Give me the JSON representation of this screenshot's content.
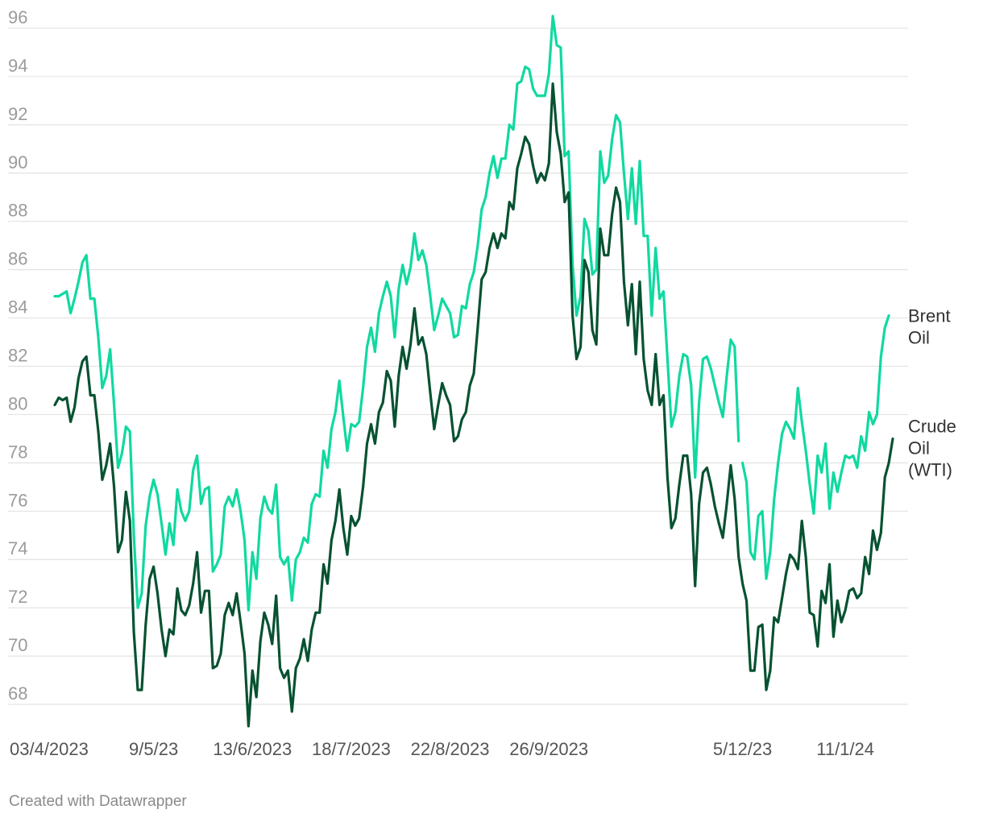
{
  "chart_data": {
    "type": "line",
    "ylim": [
      67,
      96.5
    ],
    "yticks": [
      68,
      70,
      72,
      74,
      76,
      78,
      80,
      82,
      84,
      86,
      88,
      90,
      92,
      94,
      96
    ],
    "xtick_labels": [
      {
        "label": "03/4/2023",
        "index": 0
      },
      {
        "label": "9/5/23",
        "index": 25
      },
      {
        "label": "13/6/2023",
        "index": 50
      },
      {
        "label": "18/7/2023",
        "index": 75
      },
      {
        "label": "22/8/2023",
        "index": 100
      },
      {
        "label": "26/9/2023",
        "index": 125
      },
      {
        "label": "5/12/23",
        "index": 174
      },
      {
        "label": "11/1/24",
        "index": 200
      }
    ],
    "series": [
      {
        "name": "Brent Oil",
        "label_lines": [
          "Brent",
          "Oil"
        ],
        "color": "#10d9a0",
        "gaps_after": [
          173
        ],
        "values": [
          84.9,
          84.9,
          85.0,
          85.1,
          84.2,
          84.8,
          85.5,
          86.3,
          86.6,
          84.8,
          84.8,
          83.2,
          81.1,
          81.6,
          82.7,
          80.4,
          77.8,
          78.4,
          79.5,
          79.3,
          75.0,
          72.0,
          72.6,
          75.4,
          76.6,
          77.3,
          76.7,
          75.5,
          74.2,
          75.5,
          74.6,
          76.9,
          76.0,
          75.6,
          76.0,
          77.7,
          78.3,
          76.3,
          76.9,
          77.0,
          73.5,
          73.8,
          74.2,
          76.2,
          76.6,
          76.2,
          76.9,
          76.0,
          74.8,
          71.9,
          74.3,
          73.2,
          75.7,
          76.6,
          76.1,
          75.9,
          77.1,
          74.1,
          73.8,
          74.1,
          72.3,
          74.0,
          74.3,
          74.9,
          74.7,
          76.3,
          76.7,
          76.6,
          78.5,
          77.8,
          79.4,
          80.1,
          81.4,
          79.9,
          78.5,
          79.6,
          79.5,
          79.7,
          81.1,
          82.8,
          83.6,
          82.6,
          84.2,
          84.9,
          85.5,
          84.9,
          83.2,
          85.2,
          86.2,
          85.4,
          86.1,
          87.5,
          86.4,
          86.8,
          86.2,
          84.9,
          83.5,
          84.1,
          84.8,
          84.5,
          84.2,
          83.2,
          83.3,
          84.5,
          84.4,
          85.4,
          85.9,
          87.0,
          88.5,
          89.0,
          90.0,
          90.7,
          89.8,
          90.6,
          90.6,
          92.0,
          91.8,
          93.7,
          93.8,
          94.4,
          94.3,
          93.5,
          93.2,
          93.2,
          93.2,
          94.1,
          96.5,
          95.3,
          95.2,
          90.7,
          90.9,
          86.2,
          84.1,
          84.9,
          88.1,
          87.6,
          85.8,
          86.0,
          90.9,
          89.6,
          89.9,
          91.4,
          92.4,
          92.1,
          90.0,
          88.1,
          90.2,
          87.9,
          90.5,
          87.4,
          87.4,
          84.1,
          86.9,
          84.8,
          85.1,
          82.3,
          79.5,
          80.1,
          81.6,
          82.5,
          82.4,
          81.2,
          77.4,
          80.5,
          82.3,
          82.4,
          81.9,
          81.2,
          80.5,
          79.9,
          81.6,
          83.1,
          82.8,
          78.9,
          78.0,
          77.2,
          74.3,
          74.0,
          75.8,
          76.0,
          73.2,
          74.3,
          76.5,
          78.0,
          79.2,
          79.7,
          79.4,
          79.0,
          81.1,
          79.7,
          78.5,
          77.1,
          75.9,
          78.3,
          77.6,
          78.8,
          76.1,
          77.6,
          76.8,
          77.6,
          78.3,
          78.2,
          78.3,
          77.8,
          79.1,
          78.5,
          80.1,
          79.6,
          80.0,
          82.4,
          83.6,
          84.1
        ]
      },
      {
        "name": "Crude Oil (WTI)",
        "label_lines": [
          "Crude",
          "Oil",
          "(WTI)"
        ],
        "color": "#075231",
        "gaps_after": [],
        "values": [
          80.4,
          80.7,
          80.6,
          80.7,
          79.7,
          80.3,
          81.5,
          82.2,
          82.4,
          80.8,
          80.8,
          79.3,
          77.3,
          77.9,
          78.8,
          77.0,
          74.3,
          74.8,
          76.8,
          75.6,
          71.0,
          68.6,
          68.6,
          71.3,
          73.2,
          73.7,
          72.6,
          71.1,
          70.0,
          71.1,
          70.9,
          72.8,
          71.9,
          71.7,
          72.1,
          73.0,
          74.3,
          71.8,
          72.7,
          72.7,
          69.5,
          69.6,
          70.1,
          71.7,
          72.2,
          71.7,
          72.6,
          71.4,
          70.1,
          67.1,
          69.4,
          68.3,
          70.6,
          71.8,
          71.3,
          70.5,
          72.5,
          69.5,
          69.1,
          69.4,
          67.7,
          69.5,
          69.9,
          70.7,
          69.8,
          71.1,
          71.8,
          71.8,
          73.8,
          73.0,
          74.8,
          75.6,
          76.9,
          75.3,
          74.2,
          75.8,
          75.4,
          75.7,
          77.0,
          78.8,
          79.6,
          78.8,
          80.1,
          80.5,
          81.8,
          81.4,
          79.5,
          81.6,
          82.8,
          81.9,
          82.9,
          84.4,
          82.9,
          83.2,
          82.5,
          80.9,
          79.4,
          80.4,
          81.3,
          80.8,
          80.4,
          78.9,
          79.1,
          79.8,
          80.1,
          81.2,
          81.7,
          83.6,
          85.6,
          85.9,
          86.9,
          87.5,
          86.9,
          87.5,
          87.3,
          88.8,
          88.5,
          90.2,
          90.8,
          91.5,
          91.2,
          90.3,
          89.6,
          90.0,
          89.7,
          90.4,
          93.7,
          91.7,
          90.8,
          88.8,
          89.2,
          84.1,
          82.3,
          82.8,
          86.4,
          85.9,
          83.5,
          82.9,
          87.7,
          86.6,
          86.6,
          88.3,
          89.4,
          88.8,
          85.5,
          83.7,
          85.4,
          82.5,
          85.5,
          82.3,
          81.0,
          80.4,
          82.5,
          80.4,
          80.8,
          77.4,
          75.3,
          75.7,
          77.1,
          78.3,
          78.3,
          76.7,
          72.9,
          76.3,
          77.6,
          77.8,
          77.1,
          76.2,
          75.5,
          74.9,
          76.3,
          77.9,
          76.5,
          74.1,
          73.0,
          72.3,
          69.4,
          69.4,
          71.2,
          71.3,
          68.6,
          69.4,
          71.6,
          71.4,
          72.4,
          73.4,
          74.2,
          74.0,
          73.6,
          75.6,
          74.1,
          71.8,
          71.7,
          70.4,
          72.7,
          72.2,
          73.8,
          70.8,
          72.3,
          71.4,
          71.9,
          72.7,
          72.8,
          72.4,
          72.6,
          74.1,
          73.4,
          75.2,
          74.4,
          75.1,
          77.4,
          78.0,
          79.0
        ]
      }
    ]
  },
  "credit": "Created with Datawrapper"
}
